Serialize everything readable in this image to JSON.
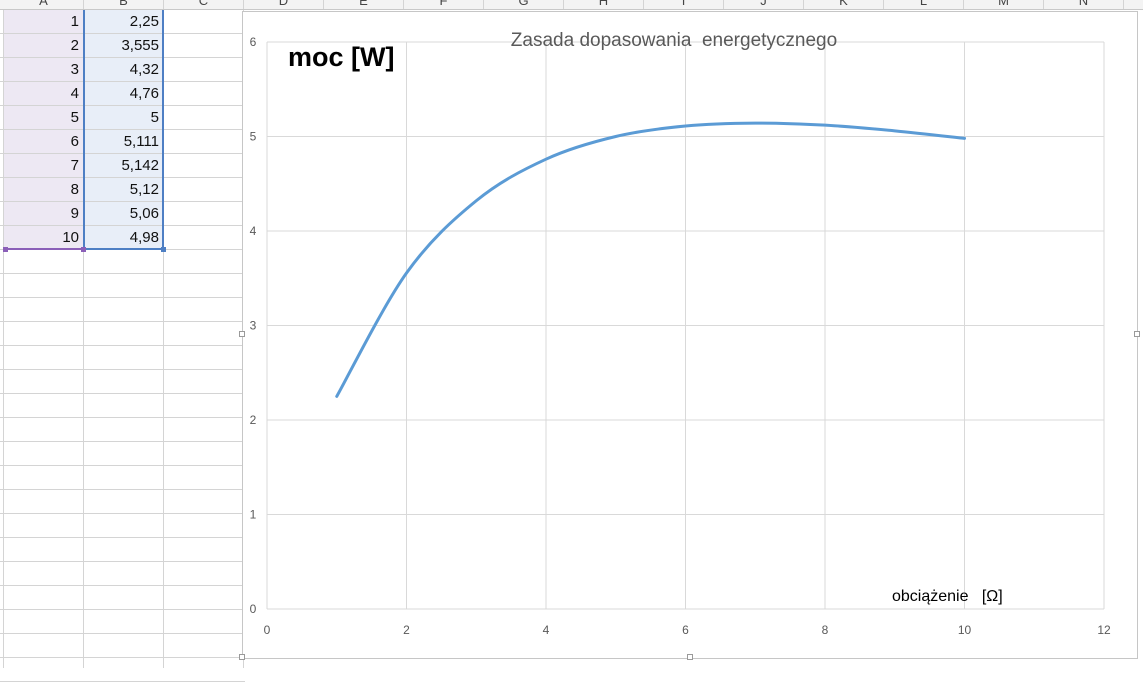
{
  "sheet": {
    "columns": [
      "A",
      "B",
      "C",
      "D",
      "E",
      "F",
      "G",
      "H",
      "I",
      "J",
      "K",
      "L",
      "M",
      "N"
    ],
    "rows": [
      {
        "a": "1",
        "b": "2,25"
      },
      {
        "a": "2",
        "b": "3,555"
      },
      {
        "a": "3",
        "b": "4,32"
      },
      {
        "a": "4",
        "b": "4,76"
      },
      {
        "a": "5",
        "b": "5"
      },
      {
        "a": "6",
        "b": "5,111"
      },
      {
        "a": "7",
        "b": "5,142"
      },
      {
        "a": "8",
        "b": "5,12"
      },
      {
        "a": "9",
        "b": "5,06"
      },
      {
        "a": "10",
        "b": "4,98"
      }
    ],
    "selection_colors": {
      "a": "#8b5fb8",
      "b": "#4e7fc4"
    }
  },
  "chart_data": {
    "type": "line",
    "title": "Zasada dopasowania  energetycznego",
    "ylabel": "moc [W]",
    "xlabel": "obciążenie   [Ω]",
    "x": [
      1,
      2,
      3,
      4,
      5,
      6,
      7,
      8,
      9,
      10
    ],
    "series": [
      {
        "values": [
          2.25,
          3.555,
          4.32,
          4.76,
          5,
          5.111,
          5.142,
          5.12,
          5.06,
          4.98
        ],
        "color": "#5b9bd5",
        "smooth": true
      }
    ],
    "xlim": [
      0,
      12
    ],
    "ylim": [
      0,
      6
    ],
    "xticks": [
      "0",
      "2",
      "4",
      "6",
      "8",
      "10",
      "12"
    ],
    "yticks": [
      "0",
      "1",
      "2",
      "3",
      "4",
      "5",
      "6"
    ],
    "grid": true,
    "legend": "none",
    "gridline_color": "#d9d9d9"
  }
}
